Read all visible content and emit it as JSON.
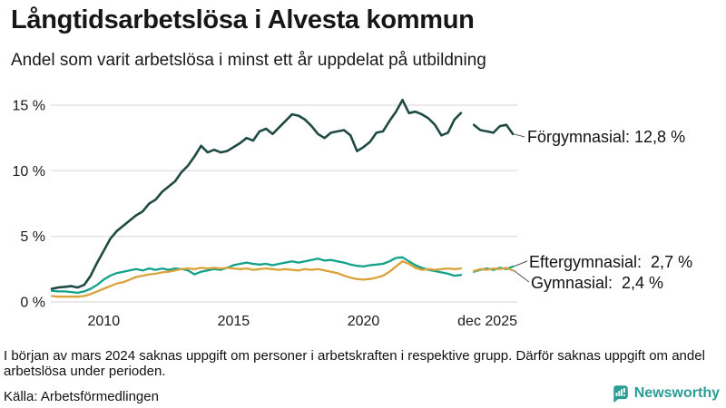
{
  "chart_data": {
    "type": "line",
    "title": "Långtidsarbetslösa i Alvesta kommun",
    "subtitle": "Andel som varit arbetslösa i minst ett år uppdelat på utbildning",
    "x_axis": {
      "min": 2008.0,
      "max": 2025.92,
      "ticks": [
        {
          "t": 2010,
          "label": "2010",
          "anchor": "middle"
        },
        {
          "t": 2015,
          "label": "2015",
          "anchor": "middle"
        },
        {
          "t": 2020,
          "label": "2020",
          "anchor": "middle"
        },
        {
          "t": 2025.92,
          "label": "dec 2025",
          "anchor": "end"
        }
      ]
    },
    "y_axis": {
      "ylim": [
        0,
        15.5
      ],
      "grid": true,
      "ticks": [
        {
          "v": 0,
          "label": "0 %"
        },
        {
          "v": 5,
          "label": "5 %"
        },
        {
          "v": 10,
          "label": "10 %"
        },
        {
          "v": 15,
          "label": "15 %"
        }
      ]
    },
    "x_start": 2008.0,
    "x_step": 0.25,
    "gap_meaning": "null = uppgift saknas (början av mars 2024)",
    "legend_position": "end-of-line",
    "series": [
      {
        "id": "forgymnasial",
        "name": "Förgymnasial",
        "color": "#1f4a42",
        "end_value": 12.8,
        "end_label": "Förgymnasial: 12,8 %",
        "values": [
          1.0,
          1.1,
          1.15,
          1.2,
          1.1,
          1.3,
          2.0,
          3.0,
          3.9,
          4.8,
          5.4,
          5.8,
          6.2,
          6.6,
          6.9,
          7.5,
          7.8,
          8.4,
          8.8,
          9.2,
          9.9,
          10.4,
          11.1,
          11.9,
          11.4,
          11.6,
          11.4,
          11.5,
          11.8,
          12.1,
          12.5,
          12.3,
          13.0,
          13.2,
          12.8,
          13.3,
          13.8,
          14.3,
          14.2,
          13.9,
          13.4,
          12.8,
          12.5,
          12.9,
          13.0,
          13.1,
          12.7,
          11.5,
          11.8,
          12.2,
          12.9,
          13.0,
          13.8,
          14.5,
          15.4,
          14.4,
          14.5,
          14.3,
          14.0,
          13.5,
          12.7,
          12.9,
          13.9,
          14.4,
          null,
          13.5,
          13.1,
          13.0,
          12.9,
          13.4,
          13.5,
          12.8
        ]
      },
      {
        "id": "eftergymnasial",
        "name": "Eftergymnasial",
        "color": "#12a189",
        "end_value": 2.7,
        "end_label": "Eftergymnasial:  2,7 %",
        "values": [
          0.85,
          0.8,
          0.8,
          0.75,
          0.7,
          0.8,
          1.0,
          1.3,
          1.7,
          2.0,
          2.2,
          2.3,
          2.4,
          2.5,
          2.4,
          2.55,
          2.45,
          2.55,
          2.45,
          2.55,
          2.5,
          2.4,
          2.1,
          2.3,
          2.4,
          2.5,
          2.45,
          2.6,
          2.8,
          2.9,
          3.0,
          2.9,
          2.85,
          2.9,
          2.8,
          2.9,
          3.0,
          3.1,
          3.0,
          3.1,
          3.2,
          3.3,
          3.15,
          3.2,
          3.1,
          3.0,
          2.85,
          2.75,
          2.7,
          2.8,
          2.85,
          2.9,
          3.1,
          3.35,
          3.4,
          3.1,
          2.8,
          2.6,
          2.45,
          2.35,
          2.25,
          2.15,
          2.0,
          2.05,
          null,
          2.3,
          2.45,
          2.55,
          2.45,
          2.6,
          2.5,
          2.7
        ]
      },
      {
        "id": "gymnasial",
        "name": "Gymnasial",
        "color": "#d9a33c",
        "end_value": 2.4,
        "end_label": "Gymnasial:  2,4 %",
        "values": [
          0.45,
          0.4,
          0.4,
          0.4,
          0.4,
          0.45,
          0.6,
          0.8,
          1.0,
          1.2,
          1.4,
          1.5,
          1.7,
          1.9,
          2.0,
          2.1,
          2.15,
          2.25,
          2.3,
          2.4,
          2.5,
          2.55,
          2.5,
          2.6,
          2.55,
          2.6,
          2.55,
          2.6,
          2.55,
          2.5,
          2.55,
          2.45,
          2.5,
          2.55,
          2.5,
          2.45,
          2.5,
          2.45,
          2.4,
          2.5,
          2.45,
          2.5,
          2.4,
          2.3,
          2.2,
          2.0,
          1.85,
          1.75,
          1.7,
          1.75,
          1.85,
          2.0,
          2.3,
          2.7,
          3.1,
          2.9,
          2.6,
          2.45,
          2.5,
          2.45,
          2.5,
          2.55,
          2.5,
          2.55,
          null,
          2.35,
          2.5,
          2.45,
          2.55,
          2.5,
          2.6,
          2.4
        ]
      }
    ]
  },
  "footer": {
    "note": "I början av mars 2024 saknas uppgift om personer i arbetskraften i respektive grupp. Därför saknas uppgift om andel arbetslösa under perioden.",
    "source": "Källa: Arbetsförmedlingen",
    "brand": "Newsworthy"
  },
  "colors": {
    "text": "#1a1a1a",
    "grid": "#dcdce1",
    "connector": "#555555",
    "forgymnasial": "#1f4a42",
    "eftergymnasial": "#12a189",
    "gymnasial": "#d9a33c",
    "brand": "#2a9d94"
  }
}
